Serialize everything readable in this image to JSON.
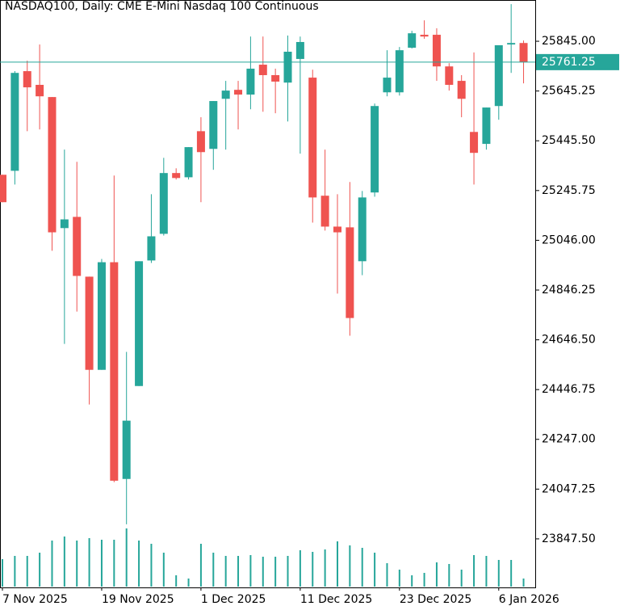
{
  "chart_data": {
    "type": "candlestick",
    "title": "NASDAQ100, Daily:  CME E-Mini Nasdaq 100 Continuous",
    "categories": [
      "7 Nov 2025",
      null,
      null,
      null,
      null,
      null,
      null,
      null,
      "19 Nov 2025",
      null,
      null,
      null,
      null,
      null,
      null,
      null,
      "1 Dec 2025",
      null,
      null,
      null,
      null,
      null,
      null,
      null,
      "11 Dec 2025",
      null,
      null,
      null,
      null,
      null,
      null,
      null,
      "23 Dec 2025",
      null,
      null,
      null,
      null,
      null,
      null,
      null,
      "6 Jan 2026",
      null,
      null
    ],
    "open": [
      25309,
      25325,
      25725,
      25670,
      25621,
      25095,
      25140,
      24900,
      24526,
      24958,
      24088,
      24461,
      24965,
      25072,
      25316,
      25299,
      25484,
      25413,
      25614,
      25650,
      25631,
      25751,
      25709,
      25679,
      25774,
      25699,
      25225,
      25101,
      25098,
      24962,
      25238,
      25640,
      25640,
      25819,
      25871,
      25871,
      25744,
      25686,
      25481,
      25433,
      25585,
      25832,
      25838
    ],
    "high": [
      25309,
      25725,
      25767,
      25832,
      25621,
      25410,
      25361,
      24900,
      24971,
      25306,
      24598,
      24962,
      25231,
      25377,
      25335,
      25420,
      25540,
      25605,
      25686,
      25686,
      25864,
      25864,
      25735,
      25868,
      25864,
      25731,
      25410,
      25231,
      25280,
      25244,
      25595,
      25809,
      25822,
      25887,
      25929,
      25897,
      25757,
      25709,
      25800,
      25579,
      25829,
      25994,
      25848
    ],
    "low": [
      25199,
      25270,
      25484,
      25491,
      25004,
      24630,
      24760,
      24387,
      24526,
      24075,
      23906,
      24461,
      24955,
      25065,
      25290,
      25290,
      25199,
      25329,
      25410,
      25491,
      25572,
      25562,
      25556,
      25523,
      25394,
      25117,
      25085,
      24832,
      24663,
      24906,
      25221,
      25624,
      25627,
      25816,
      25855,
      25686,
      25647,
      25540,
      25270,
      25410,
      25530,
      25718,
      25676
    ],
    "close": [
      25199,
      25718,
      25660,
      25624,
      25078,
      25130,
      24903,
      24526,
      24958,
      24081,
      24322,
      24962,
      25062,
      25316,
      25296,
      25420,
      25400,
      25605,
      25647,
      25631,
      25735,
      25709,
      25683,
      25803,
      25842,
      25218,
      25101,
      25078,
      24734,
      25218,
      25585,
      25699,
      25809,
      25877,
      25864,
      25744,
      25670,
      25614,
      25397,
      25579,
      25829,
      25838,
      25761.25
    ],
    "volume": [
      34,
      38,
      38,
      42,
      57,
      62,
      57,
      60,
      58,
      58,
      72,
      57,
      53,
      42,
      14,
      10,
      53,
      42,
      38,
      38,
      39,
      37,
      37,
      38,
      45,
      43,
      46,
      56,
      51,
      48,
      42,
      29,
      21,
      14,
      17,
      30,
      28,
      21,
      39,
      38,
      33,
      33,
      10
    ],
    "up_color": "#26a69a",
    "down_color": "#ef5350",
    "last_price": {
      "value": 25761.25,
      "label": "25761.25"
    },
    "ylim": [
      23652.6,
      26010.6
    ],
    "yticks": [
      {
        "value": 25845.0,
        "label": "25845.00"
      },
      {
        "value": 25645.25,
        "label": "25645.25"
      },
      {
        "value": 25445.5,
        "label": "25445.50"
      },
      {
        "value": 25245.75,
        "label": "25245.75"
      },
      {
        "value": 25046.0,
        "label": "25046.00"
      },
      {
        "value": 24846.25,
        "label": "24846.25"
      },
      {
        "value": 24646.5,
        "label": "24646.50"
      },
      {
        "value": 24446.75,
        "label": "24446.75"
      },
      {
        "value": 24247.0,
        "label": "24247.00"
      },
      {
        "value": 24047.25,
        "label": "24047.25"
      },
      {
        "value": 23847.5,
        "label": "23847.50"
      }
    ]
  }
}
